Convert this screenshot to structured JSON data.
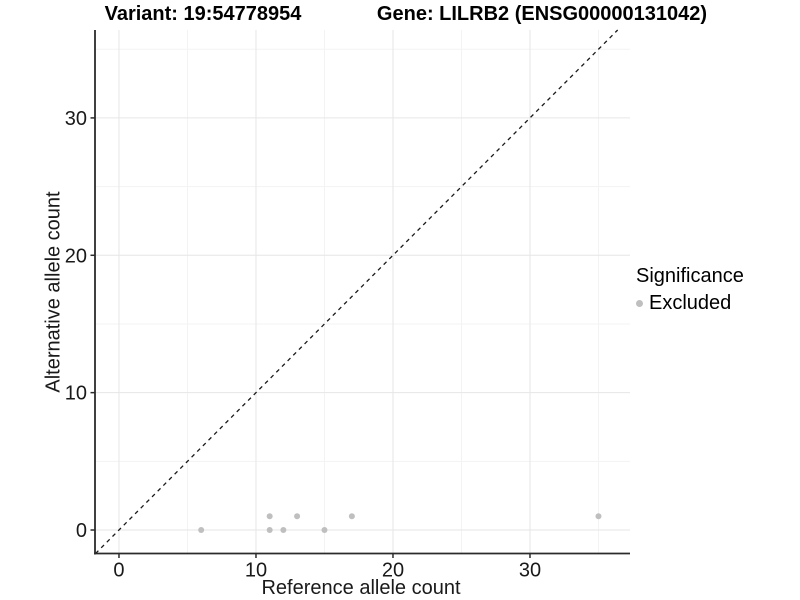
{
  "chart_data": {
    "type": "scatter",
    "titles": [
      "Variant: 19:54778954",
      "Gene: LILRB2 (ENSG00000131042)"
    ],
    "xlabel": "Reference allele count",
    "ylabel": "Alternative allele count",
    "xlim": [
      -1.75,
      37.3
    ],
    "ylim": [
      -1.71,
      36.4
    ],
    "x_ticks": [
      0,
      10,
      20,
      30
    ],
    "y_ticks": [
      0,
      10,
      20,
      30
    ],
    "x_minor_gridlines": [
      5,
      15,
      25,
      35
    ],
    "y_minor_gridlines": [
      5,
      15,
      25,
      35
    ],
    "grid": true,
    "series": [
      {
        "name": "Excluded",
        "color": "#bfbfbf",
        "points": [
          {
            "x": 6,
            "y": 0
          },
          {
            "x": 11,
            "y": 0
          },
          {
            "x": 12,
            "y": 0
          },
          {
            "x": 15,
            "y": 0
          },
          {
            "x": 11,
            "y": 1
          },
          {
            "x": 13,
            "y": 1
          },
          {
            "x": 17,
            "y": 1
          },
          {
            "x": 35,
            "y": 1
          }
        ]
      }
    ],
    "reference_line": {
      "kind": "identity",
      "slope": 1,
      "intercept": 0,
      "style": "dashed"
    },
    "legend": {
      "title": "Significance",
      "position": "right",
      "items": [
        {
          "label": "Excluded",
          "color": "#bfbfbf"
        }
      ]
    }
  },
  "colors": {
    "background": "#ffffff",
    "grid_major": "#e6e6e6",
    "grid_minor": "#f3f3f3",
    "axis_line": "#2b2b2b",
    "tick_text": "#1a1a1a",
    "reference_line": "#1a1a1a",
    "point": "#bfbfbf"
  }
}
